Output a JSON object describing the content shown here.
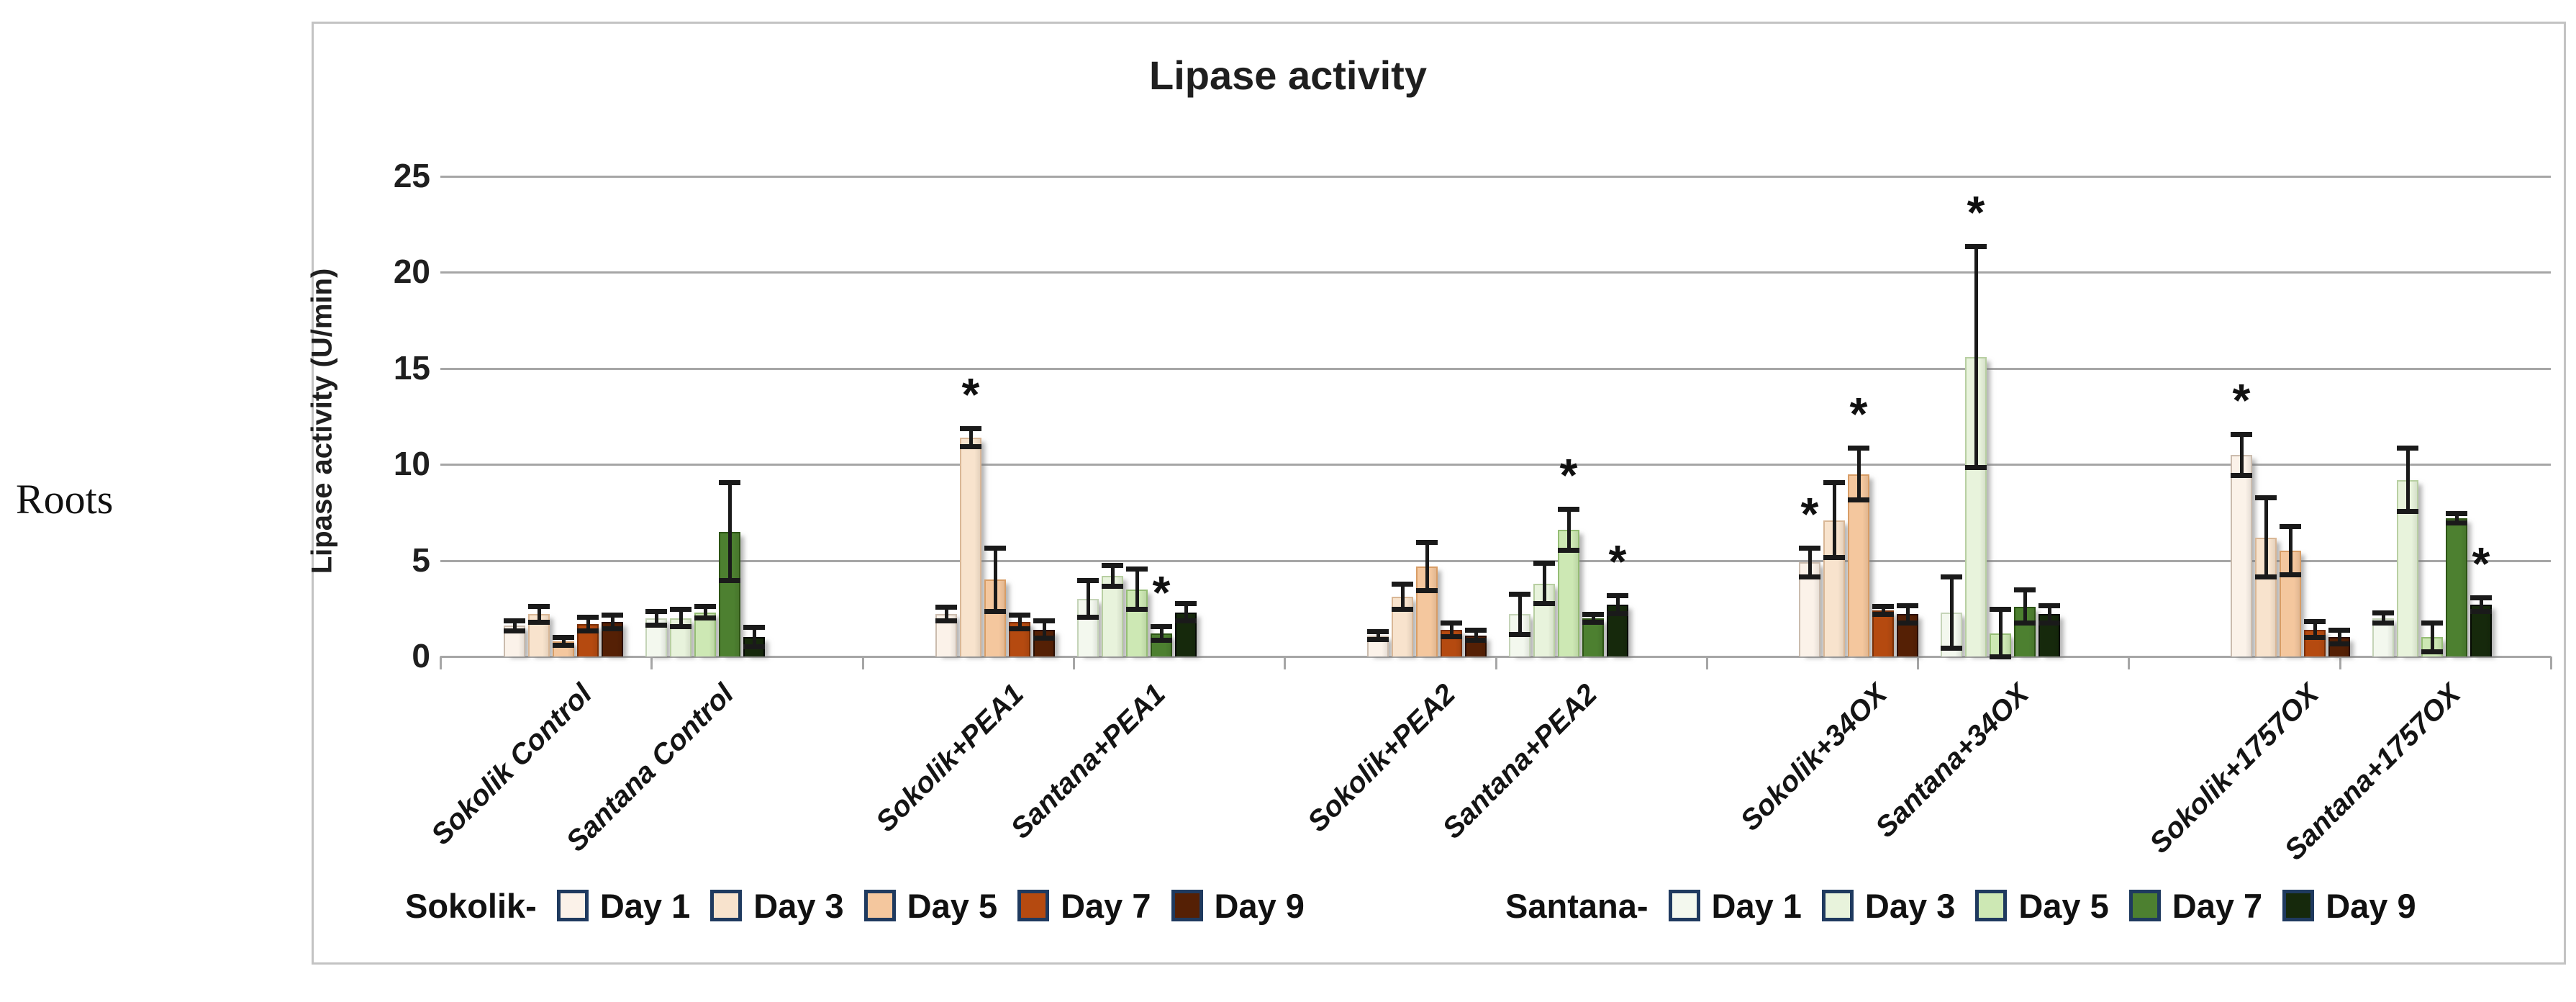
{
  "figure": {
    "row_label": "Roots",
    "title": "Lipase activity",
    "y_axis_label": "Lipase activity (U/min)"
  },
  "legend": {
    "sokolik_prefix": "Sokolik-",
    "santana_prefix": "Santana-",
    "days": [
      "Day 1",
      "Day 3",
      "Day 5",
      "Day 7",
      "Day 9"
    ]
  },
  "colors": {
    "sokolik_fill": [
      "#fbf2e9",
      "#f8e3cd",
      "#f4c79e",
      "#b54a10",
      "#552005"
    ],
    "sokolik_border": [
      "#cbbcae",
      "#d9b796",
      "#d89d66",
      "#7a2f06",
      "#2a0e02"
    ],
    "santana_fill": [
      "#f3f8ee",
      "#e8f3dc",
      "#cde8b4",
      "#4d8030",
      "#16290c"
    ],
    "santana_border": [
      "#c5d4b8",
      "#b8cfa2",
      "#95bd75",
      "#2d5415",
      "#050a03"
    ],
    "legend_swatch_border": "#1f3a5f",
    "gridline": "#a6a6a6",
    "error_bar": "#1a1a1a",
    "frame_border": "#c3c3c3"
  },
  "chart_data": {
    "type": "bar",
    "title": "Lipase activity",
    "xlabel": "",
    "ylabel": "Lipase activity (U/min)",
    "ylim": [
      0,
      25
    ],
    "yticks": [
      0,
      5,
      10,
      15,
      20,
      25
    ],
    "grid": true,
    "legend_position": "bottom",
    "days": [
      "Day 1",
      "Day 3",
      "Day 5",
      "Day 7",
      "Day 9"
    ],
    "groups": [
      {
        "label": "Sokolik Control",
        "series": "sokolik",
        "values": [
          1.6,
          2.2,
          0.8,
          1.7,
          1.8
        ],
        "errors": [
          0.2,
          0.35,
          0.15,
          0.3,
          0.3
        ],
        "stars": []
      },
      {
        "label": "Santana Control",
        "series": "santana",
        "values": [
          2.0,
          2.0,
          2.3,
          6.5,
          1.0
        ],
        "errors": [
          0.3,
          0.4,
          0.25,
          2.5,
          0.45
        ],
        "stars": []
      },
      {
        "label": "Sokolik+PEA1",
        "series": "sokolik",
        "values": [
          2.2,
          11.4,
          4.0,
          1.8,
          1.4
        ],
        "errors": [
          0.3,
          0.4,
          1.6,
          0.3,
          0.4
        ],
        "stars": [
          1
        ]
      },
      {
        "label": "Santana+PEA1",
        "series": "santana",
        "values": [
          3.0,
          4.2,
          3.5,
          1.2,
          2.3
        ],
        "errors": [
          0.9,
          0.5,
          1.0,
          0.3,
          0.4
        ],
        "stars": [
          3
        ]
      },
      {
        "label": "Sokolik+PEA2",
        "series": "sokolik",
        "values": [
          1.1,
          3.1,
          4.7,
          1.4,
          1.1
        ],
        "errors": [
          0.15,
          0.6,
          1.2,
          0.3,
          0.2
        ],
        "stars": []
      },
      {
        "label": "Santana+PEA2",
        "series": "santana",
        "values": [
          2.2,
          3.8,
          6.6,
          2.0,
          2.7
        ],
        "errors": [
          1.0,
          1.0,
          1.0,
          0.15,
          0.4
        ],
        "stars": [
          2,
          4
        ]
      },
      {
        "label": "Sokolik+34OX",
        "series": "sokolik",
        "values": [
          4.9,
          7.1,
          9.5,
          2.4,
          2.2
        ],
        "errors": [
          0.7,
          1.9,
          1.3,
          0.15,
          0.4
        ],
        "stars": [
          0,
          2
        ]
      },
      {
        "label": "Santana+34OX",
        "series": "santana",
        "values": [
          2.3,
          15.6,
          1.2,
          2.6,
          2.2
        ],
        "errors": [
          1.8,
          5.7,
          1.2,
          0.8,
          0.4
        ],
        "stars": [
          1
        ]
      },
      {
        "label": "Sokolik+1757OX",
        "series": "sokolik",
        "values": [
          10.5,
          6.2,
          5.5,
          1.4,
          1.0
        ],
        "errors": [
          1.0,
          2.0,
          1.2,
          0.35,
          0.3
        ],
        "stars": [
          0
        ]
      },
      {
        "label": "Santana+1757OX",
        "series": "santana",
        "values": [
          2.0,
          9.2,
          1.0,
          7.2,
          2.7
        ],
        "errors": [
          0.2,
          1.6,
          0.7,
          0.2,
          0.3
        ],
        "stars": [
          4
        ]
      }
    ]
  }
}
